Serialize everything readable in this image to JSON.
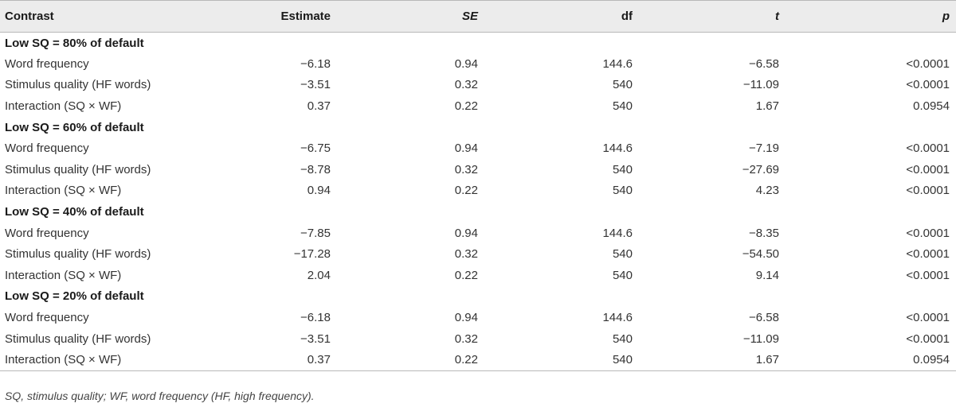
{
  "headers": [
    "Contrast",
    "Estimate",
    "SE",
    "df",
    "t",
    "p"
  ],
  "sections": [
    {
      "title": "Low SQ = 80% of default",
      "rows": [
        {
          "contrast": "Word frequency",
          "estimate": "−6.18",
          "se": "0.94",
          "df": "144.6",
          "t": "−6.58",
          "p": "<0.0001"
        },
        {
          "contrast": "Stimulus quality (HF words)",
          "estimate": "−3.51",
          "se": "0.32",
          "df": "540",
          "t": "−11.09",
          "p": "<0.0001"
        },
        {
          "contrast": "Interaction (SQ × WF)",
          "estimate": "0.37",
          "se": "0.22",
          "df": "540",
          "t": "1.67",
          "p": "0.0954"
        }
      ]
    },
    {
      "title": "Low SQ = 60% of default",
      "rows": [
        {
          "contrast": "Word frequency",
          "estimate": "−6.75",
          "se": "0.94",
          "df": "144.6",
          "t": "−7.19",
          "p": "<0.0001"
        },
        {
          "contrast": "Stimulus quality (HF words)",
          "estimate": "−8.78",
          "se": "0.32",
          "df": "540",
          "t": "−27.69",
          "p": "<0.0001"
        },
        {
          "contrast": "Interaction (SQ × WF)",
          "estimate": "0.94",
          "se": "0.22",
          "df": "540",
          "t": "4.23",
          "p": "<0.0001"
        }
      ]
    },
    {
      "title": "Low SQ = 40% of default",
      "rows": [
        {
          "contrast": "Word frequency",
          "estimate": "−7.85",
          "se": "0.94",
          "df": "144.6",
          "t": "−8.35",
          "p": "<0.0001"
        },
        {
          "contrast": "Stimulus quality (HF words)",
          "estimate": "−17.28",
          "se": "0.32",
          "df": "540",
          "t": "−54.50",
          "p": "<0.0001"
        },
        {
          "contrast": "Interaction (SQ × WF)",
          "estimate": "2.04",
          "se": "0.22",
          "df": "540",
          "t": "9.14",
          "p": "<0.0001"
        }
      ]
    },
    {
      "title": "Low SQ = 20% of default",
      "rows": [
        {
          "contrast": "Word frequency",
          "estimate": "−6.18",
          "se": "0.94",
          "df": "144.6",
          "t": "−6.58",
          "p": "<0.0001"
        },
        {
          "contrast": "Stimulus quality (HF words)",
          "estimate": "−3.51",
          "se": "0.32",
          "df": "540",
          "t": "−11.09",
          "p": "<0.0001"
        },
        {
          "contrast": "Interaction (SQ × WF)",
          "estimate": "0.37",
          "se": "0.22",
          "df": "540",
          "t": "1.67",
          "p": "0.0954"
        }
      ]
    }
  ],
  "footnote": "SQ, stimulus quality; WF, word frequency (HF, high frequency).",
  "colors": {
    "header_background": "#ececec",
    "rule": "#b8b8b8",
    "text": "#333333"
  }
}
